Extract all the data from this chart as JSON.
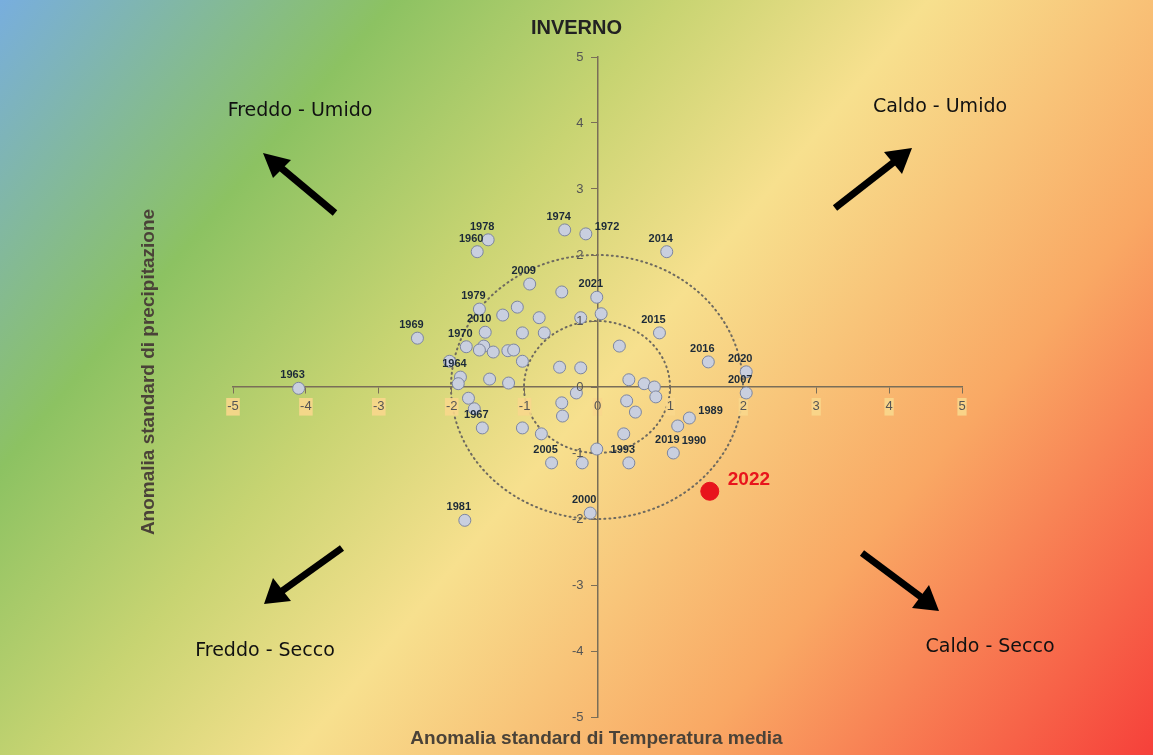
{
  "chart_data": {
    "type": "scatter",
    "title": "INVERNO",
    "xlabel": "Anomalia standard di Temperatura media",
    "ylabel": "Anomalia standard di precipitazione",
    "xlim": [
      -5,
      5
    ],
    "ylim": [
      -5,
      5
    ],
    "xticks": [
      -5,
      -4,
      -3,
      -2,
      -1,
      0,
      1,
      2,
      3,
      4,
      5
    ],
    "yticks": [
      -5,
      -4,
      -3,
      -2,
      -1,
      0,
      1,
      2,
      3,
      4,
      5
    ],
    "marker": "circle",
    "series": [
      {
        "color": "#c9cfdf",
        "values": [
          2.38,
          2.32,
          2.23,
          2.05,
          1.56,
          1.44,
          1.36,
          1.18,
          1.21,
          1.09,
          1.05,
          1.05,
          1.11,
          0.74,
          0.83,
          0.82,
          0.82,
          0.61,
          0.62,
          0.56,
          0.53,
          0.55,
          0.56,
          0.39,
          0.39,
          0.3,
          0.29,
          0.15,
          0.05,
          0.12,
          0.06,
          -0.02,
          -0.09,
          2.05,
          0.82,
          0.62,
          0.38,
          0.23,
          0.11,
          0.05,
          0,
          -0.09,
          -0.15,
          -0.21,
          -0.38,
          -0.47,
          -0.59,
          -1,
          -0.71,
          -0.94,
          -1.15,
          -1.15,
          -1.91,
          -0.17,
          -0.33,
          -0.62,
          -0.62,
          -0.71,
          -0.24,
          -0.44,
          -1.15,
          -2.02
        ],
        "x": [
          -0.45,
          -0.16,
          -1.5,
          -1.65,
          -0.93,
          -0.49,
          -0.01,
          -1.62,
          -1.1,
          -1.3,
          -0.8,
          -0.23,
          0.05,
          -2.47,
          -1.54,
          -1.03,
          -0.73,
          -1.8,
          -1.56,
          -1.62,
          -1.43,
          -1.23,
          -1.15,
          -1.03,
          -2.03,
          -0.52,
          -0.23,
          -1.88,
          -1.91,
          -1.48,
          -1.22,
          -4.1,
          -0.29,
          0.95,
          0.85,
          0.3,
          1.52,
          2.04,
          0.43,
          0.64,
          0.78,
          2.04,
          0.8,
          0.4,
          0.52,
          1.26,
          1.1,
          1.04,
          0.36,
          -0.01,
          -0.21,
          0.43,
          -0.1,
          -1.77,
          -1.69,
          -1.58,
          -1.03,
          -0.77,
          -0.49,
          -0.48,
          -0.63,
          -1.82
        ]
      },
      {
        "color": "#e8141c",
        "x": [
          1.54
        ],
        "values": [
          -1.58
        ]
      }
    ],
    "annotations": [
      "Freddo - Umido",
      "Caldo - Umido",
      "Freddo - Secco",
      "Caldo - Secco",
      {
        "text": "1974",
        "x": -0.45,
        "y": 2.38
      },
      {
        "text": "1972",
        "x": -0.16,
        "y": 2.32
      },
      {
        "text": "1978",
        "x": -1.5,
        "y": 2.23
      },
      {
        "text": "1960",
        "x": -1.65,
        "y": 2.05
      },
      {
        "text": "2009",
        "x": -0.93,
        "y": 1.56
      },
      {
        "text": "2021",
        "x": -0.01,
        "y": 1.36
      },
      {
        "text": "1979",
        "x": -1.62,
        "y": 1.18
      },
      {
        "text": "1969",
        "x": -2.47,
        "y": 0.74
      },
      {
        "text": "2010",
        "x": -1.54,
        "y": 0.83
      },
      {
        "text": "1970",
        "x": -1.8,
        "y": 0.61
      },
      {
        "text": "1964",
        "x": -1.88,
        "y": 0.15
      },
      {
        "text": "1963",
        "x": -4.1,
        "y": -0.02
      },
      {
        "text": "2014",
        "x": 0.95,
        "y": 2.05
      },
      {
        "text": "2015",
        "x": 0.85,
        "y": 0.82
      },
      {
        "text": "2016",
        "x": 1.52,
        "y": 0.38
      },
      {
        "text": "2020",
        "x": 2.04,
        "y": 0.23
      },
      {
        "text": "2007",
        "x": 2.04,
        "y": -0.09
      },
      {
        "text": "1989",
        "x": 1.26,
        "y": -0.47
      },
      {
        "text": "1990",
        "x": 1.1,
        "y": -0.59
      },
      {
        "text": "2019",
        "x": 1.04,
        "y": -1
      },
      {
        "text": "1993",
        "x": 0.43,
        "y": -1.15
      },
      {
        "text": "2000",
        "x": -0.1,
        "y": -1.91
      },
      {
        "text": "1967",
        "x": -1.58,
        "y": -0.62
      },
      {
        "text": "2005",
        "x": -0.63,
        "y": -1.15
      },
      {
        "text": "1981",
        "x": -1.82,
        "y": -2.02
      },
      {
        "text": "2022",
        "x": 1.54,
        "y": -1.58
      }
    ]
  }
}
